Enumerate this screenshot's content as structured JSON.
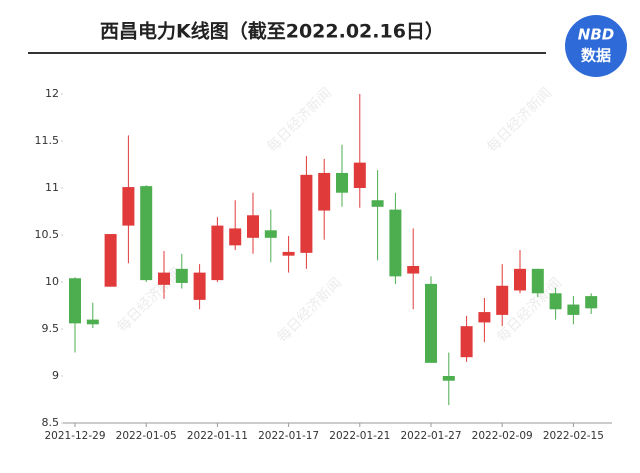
{
  "chart_data": {
    "type": "candlestick",
    "title": "西昌电力K线图（截至2022.02.16日）",
    "categories": [
      "2021-12-29",
      null,
      null,
      null,
      "2022-01-05",
      null,
      null,
      null,
      "2022-01-11",
      null,
      null,
      null,
      "2022-01-17",
      null,
      null,
      null,
      "2022-01-21",
      null,
      null,
      null,
      "2022-01-27",
      null,
      null,
      null,
      "2022-02-09",
      null,
      null,
      null,
      "2022-02-15",
      null
    ],
    "open": [
      10.04,
      9.6,
      9.95,
      10.6,
      11.02,
      9.97,
      10.14,
      9.81,
      10.02,
      10.39,
      10.47,
      10.55,
      10.28,
      10.31,
      10.76,
      11.16,
      11.0,
      10.87,
      10.77,
      10.09,
      9.98,
      9.0,
      9.2,
      9.57,
      9.65,
      9.91,
      10.14,
      9.88,
      9.76,
      9.85
    ],
    "close": [
      9.56,
      9.55,
      10.51,
      11.01,
      10.02,
      10.1,
      9.99,
      10.1,
      10.6,
      10.57,
      10.71,
      10.47,
      10.32,
      11.14,
      11.16,
      10.95,
      11.27,
      10.8,
      10.06,
      10.17,
      9.14,
      8.95,
      9.53,
      9.68,
      9.96,
      10.14,
      9.88,
      9.71,
      9.65,
      9.72
    ],
    "high": [
      10.05,
      9.78,
      10.51,
      11.56,
      11.03,
      10.33,
      10.3,
      10.19,
      10.69,
      10.87,
      10.95,
      10.77,
      10.49,
      11.34,
      11.31,
      11.46,
      12.0,
      11.19,
      10.95,
      10.57,
      10.06,
      9.25,
      9.64,
      9.83,
      10.19,
      10.34,
      10.14,
      9.94,
      9.85,
      9.88
    ],
    "low": [
      9.25,
      9.51,
      9.95,
      10.2,
      10.0,
      9.82,
      9.93,
      9.71,
      10.0,
      10.34,
      10.3,
      10.21,
      10.1,
      10.14,
      10.45,
      10.8,
      10.79,
      10.23,
      9.98,
      9.71,
      9.14,
      8.69,
      9.15,
      9.36,
      9.53,
      9.88,
      9.84,
      9.6,
      9.55,
      9.66
    ],
    "up_color": "#e03a3a",
    "down_color": "#4cae4f",
    "ylim": [
      8.5,
      12
    ],
    "yticks": [
      8.5,
      9,
      9.5,
      10,
      10.5,
      11,
      11.5,
      12
    ]
  },
  "logo": {
    "top": "NBD",
    "bottom": "数据"
  },
  "watermark": "每日经济新闻"
}
